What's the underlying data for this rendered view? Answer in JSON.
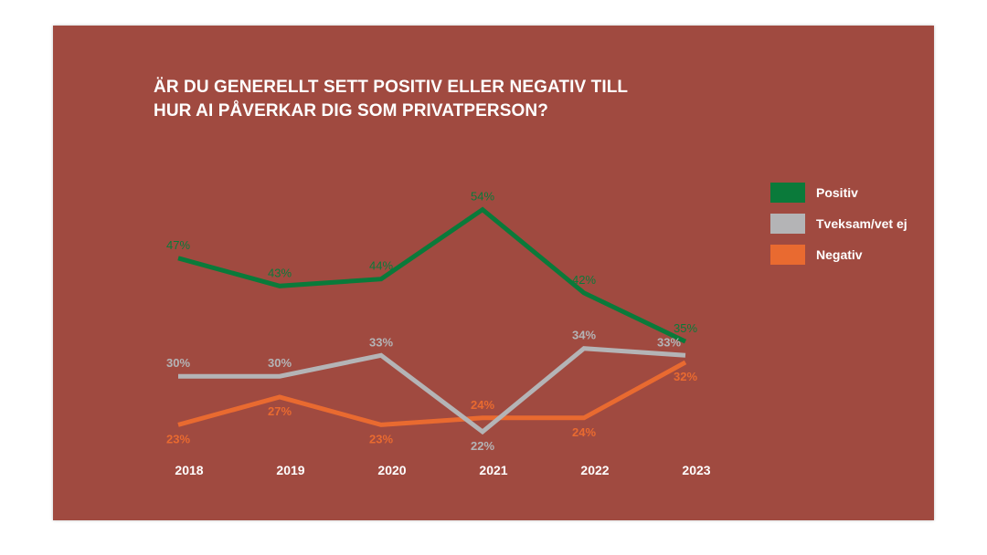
{
  "title_lines": [
    "ÄR DU GENERELLT SETT POSITIV ELLER NEGATIV TILL",
    "HUR AI PÅVERKAR DIG SOM PRIVATPERSON?"
  ],
  "colors": {
    "background": "#a04a40",
    "positiv": "#0a7a3a",
    "tveksam": "#b4b4b6",
    "negativ": "#e96a30",
    "axis_text": "#ffffff"
  },
  "chart_data": {
    "type": "line",
    "title": "ÄR DU GENERELLT SETT POSITIV ELLER NEGATIV TILL HUR AI PÅVERKAR DIG SOM PRIVATPERSON?",
    "categories": [
      "2018",
      "2019",
      "2020",
      "2021",
      "2022",
      "2023"
    ],
    "ylim": [
      20,
      56
    ],
    "grid": false,
    "legend_position": "right",
    "series": [
      {
        "name": "Positiv",
        "color": "#0a7a3a",
        "values": [
          47,
          43,
          44,
          54,
          42,
          35
        ],
        "labels": [
          "47%",
          "43%",
          "44%",
          "54%",
          "42%",
          "35%"
        ],
        "label_side": [
          "above",
          "above",
          "above",
          "above",
          "above",
          "above"
        ]
      },
      {
        "name": "Tveksam/vet ej",
        "color": "#b4b4b6",
        "values": [
          30,
          30,
          33,
          22,
          34,
          33
        ],
        "labels": [
          "30%",
          "30%",
          "33%",
          "22%",
          "34%",
          "33%"
        ],
        "label_side": [
          "above",
          "above",
          "above",
          "below",
          "above",
          "above"
        ]
      },
      {
        "name": "Negativ",
        "color": "#e96a30",
        "values": [
          23,
          27,
          23,
          24,
          24,
          32
        ],
        "labels": [
          "23%",
          "27%",
          "23%",
          "24%",
          "24%",
          "32%"
        ],
        "label_side": [
          "below",
          "below",
          "below",
          "above",
          "below",
          "below"
        ]
      }
    ]
  }
}
